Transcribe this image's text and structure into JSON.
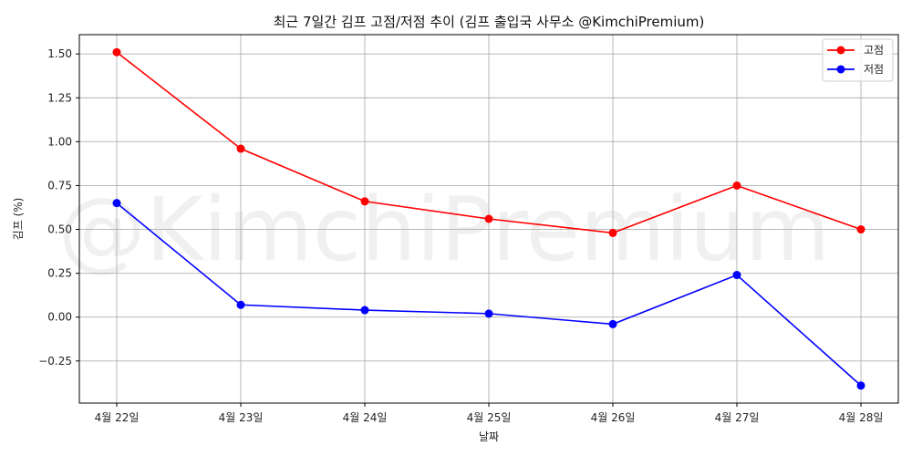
{
  "chart_data": {
    "type": "line",
    "title": "최근 7일간 김프 고점/저점 추이 (김프 출입국 사무소 @KimchiPremium)",
    "xlabel": "날짜",
    "ylabel": "김프 (%)",
    "categories": [
      "4월 22일",
      "4월 23일",
      "4월 24일",
      "4월 25일",
      "4월 26일",
      "4월 27일",
      "4월 28일"
    ],
    "series": [
      {
        "name": "고점",
        "color": "#ff0000",
        "values": [
          1.51,
          0.96,
          0.66,
          0.56,
          0.48,
          0.75,
          0.5
        ]
      },
      {
        "name": "저점",
        "color": "#0000ff",
        "values": [
          0.65,
          0.07,
          0.04,
          0.02,
          -0.04,
          0.24,
          -0.39
        ]
      }
    ],
    "yticks": [
      -0.25,
      0.0,
      0.25,
      0.5,
      0.75,
      1.0,
      1.25,
      1.5
    ],
    "ytick_labels": [
      "−0.25",
      "0.00",
      "0.25",
      "0.50",
      "0.75",
      "1.00",
      "1.25",
      "1.50"
    ],
    "ylim": [
      -0.49,
      1.61
    ],
    "grid": true,
    "legend_position": "top-right",
    "watermark": "@KimchiPremium"
  }
}
